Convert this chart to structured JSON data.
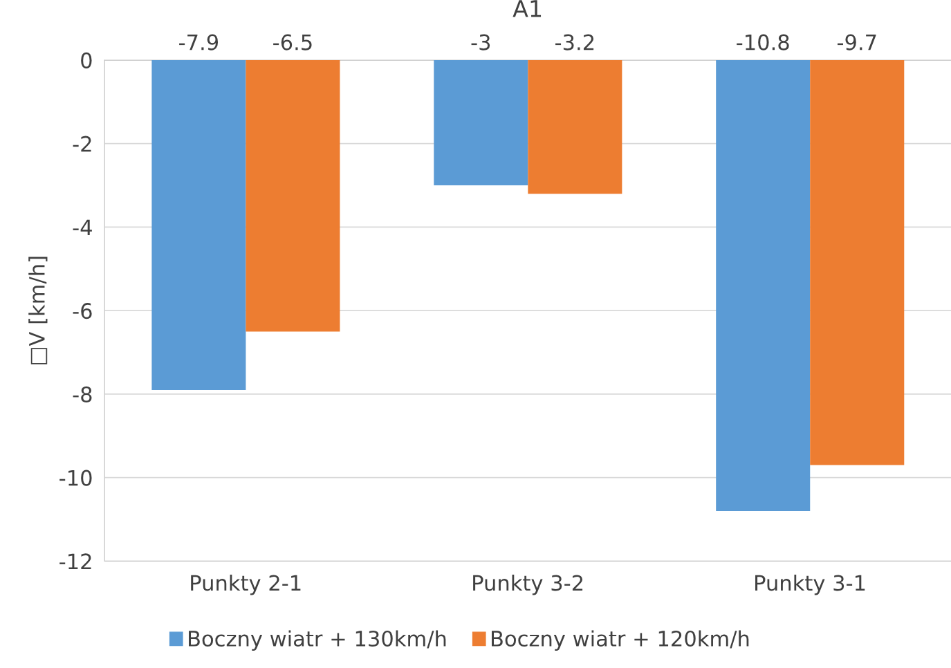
{
  "chart_data": {
    "type": "bar",
    "title": "A1",
    "ylabel": "□V [km/h]",
    "categories": [
      "Punkty 2-1",
      "Punkty 3-2",
      "Punkty 3-1"
    ],
    "series": [
      {
        "name": "Boczny wiatr + 130km/h",
        "color": "#5b9bd5",
        "values": [
          -7.9,
          -3,
          -10.8
        ]
      },
      {
        "name": "Boczny wiatr + 120km/h",
        "color": "#ed7d31",
        "values": [
          -6.5,
          -3.2,
          -9.7
        ]
      }
    ],
    "ylim": [
      -12,
      0
    ],
    "yticks": [
      -12,
      -10,
      -8,
      -6,
      -4,
      -2,
      0
    ],
    "grid": "y",
    "legend": "bottom",
    "data_labels": true
  }
}
